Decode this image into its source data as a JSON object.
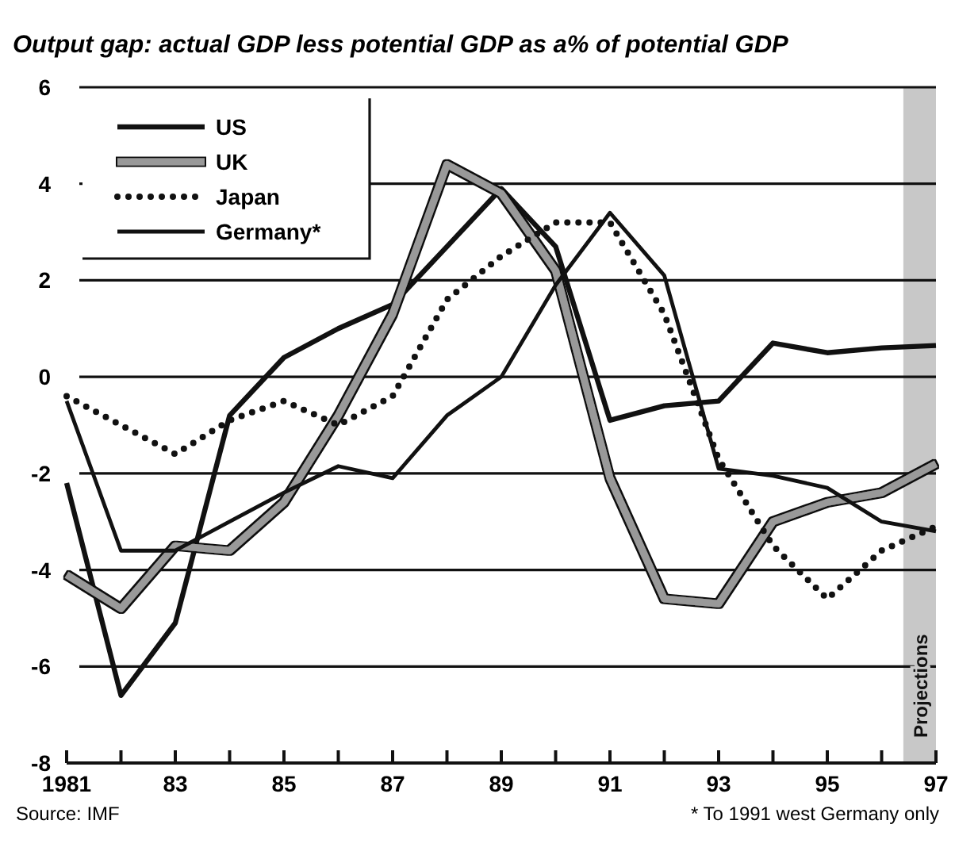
{
  "chart_data": {
    "type": "line",
    "title": "Output gap: actual GDP less potential GDP as  a% of potential GDP",
    "x": [
      1981,
      1982,
      1983,
      1984,
      1985,
      1986,
      1987,
      1988,
      1989,
      1990,
      1991,
      1992,
      1993,
      1994,
      1995,
      1996,
      1997
    ],
    "xlim": [
      1981,
      1997
    ],
    "xticks": [
      {
        "value": 1981,
        "label": "1981"
      },
      {
        "value": 1982,
        "label": null
      },
      {
        "value": 1983,
        "label": "83"
      },
      {
        "value": 1984,
        "label": null
      },
      {
        "value": 1985,
        "label": "85"
      },
      {
        "value": 1986,
        "label": null
      },
      {
        "value": 1987,
        "label": "87"
      },
      {
        "value": 1988,
        "label": null
      },
      {
        "value": 1989,
        "label": "89"
      },
      {
        "value": 1990,
        "label": null
      },
      {
        "value": 1991,
        "label": "91"
      },
      {
        "value": 1992,
        "label": null
      },
      {
        "value": 1993,
        "label": "93"
      },
      {
        "value": 1994,
        "label": null
      },
      {
        "value": 1995,
        "label": "95"
      },
      {
        "value": 1996,
        "label": null
      },
      {
        "value": 1997,
        "label": "97"
      }
    ],
    "ylim": [
      -8,
      6
    ],
    "yticks": [
      -8,
      -6,
      -4,
      -2,
      0,
      2,
      4,
      6
    ],
    "grid": "y",
    "legend": "top left",
    "series": [
      {
        "name": "US",
        "color": "#111111",
        "values": [
          -2.2,
          -6.6,
          -5.1,
          -0.8,
          0.4,
          1.0,
          1.5,
          2.7,
          3.9,
          2.7,
          -0.9,
          -0.6,
          -0.5,
          0.7,
          0.5,
          0.6,
          0.65
        ]
      },
      {
        "name": "UK",
        "color": "#999999",
        "values": [
          -4.1,
          -4.8,
          -3.5,
          -3.6,
          -2.6,
          -0.8,
          1.3,
          4.4,
          3.8,
          2.2,
          -2.1,
          -4.6,
          -4.7,
          -3.0,
          -2.6,
          -2.4,
          -1.8
        ]
      },
      {
        "name": "Japan",
        "color": "#111111",
        "line_style": "dotted",
        "values": [
          -0.4,
          -1.0,
          -1.6,
          -0.9,
          -0.5,
          -1.0,
          -0.4,
          1.6,
          2.5,
          3.2,
          3.2,
          1.3,
          -1.7,
          -3.5,
          -4.6,
          -3.6,
          -3.1
        ]
      },
      {
        "name": "Germany*",
        "color": "#111111",
        "values": [
          -0.5,
          -3.6,
          -3.6,
          -3.0,
          -2.4,
          -1.85,
          -2.1,
          -0.8,
          0.0,
          1.9,
          3.4,
          2.1,
          -1.9,
          -2.05,
          -2.3,
          -3.0,
          -3.2
        ]
      }
    ],
    "bands": [
      {
        "axis": "x",
        "from": 1996.4,
        "to": 1997,
        "label": "Projections",
        "color": "#c8c8c8"
      }
    ],
    "annotations": [
      "Source: IMF",
      "* To 1991 west Germany only"
    ]
  }
}
